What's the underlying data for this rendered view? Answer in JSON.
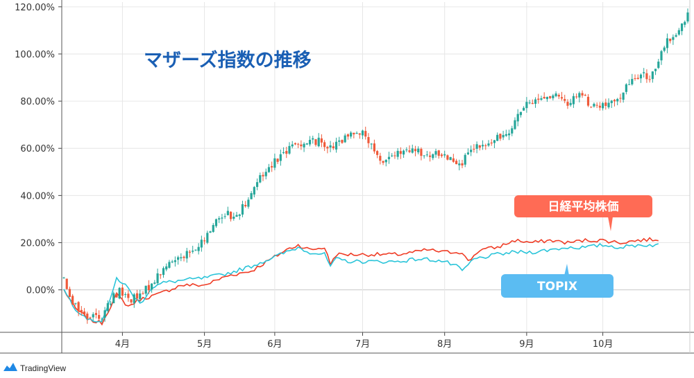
{
  "chart_data": {
    "type": "line",
    "title": "マザーズ指数の推移",
    "y_unit": "%",
    "ylim": [
      -18,
      122
    ],
    "y_ticks": [
      "0.00%",
      "20.00%",
      "40.00%",
      "60.00%",
      "80.00%",
      "100.00%",
      "120.00%"
    ],
    "y_tick_values": [
      0,
      20,
      40,
      60,
      80,
      100,
      120
    ],
    "x_ticks": [
      "4月",
      "5月",
      "6月",
      "7月",
      "8月",
      "9月",
      "10月"
    ],
    "x_tick_index": [
      20,
      48,
      72,
      102,
      130,
      158,
      184
    ],
    "num_points": 204,
    "grid": true,
    "series": [
      {
        "name": "日経平均株価",
        "kind": "line",
        "color": "#ef3b24",
        "keypoints": [
          [
            0,
            0
          ],
          [
            4,
            -8
          ],
          [
            9,
            -13
          ],
          [
            13,
            -14
          ],
          [
            18,
            -2
          ],
          [
            22,
            -7
          ],
          [
            26,
            -4
          ],
          [
            32,
            -2
          ],
          [
            40,
            2
          ],
          [
            48,
            2
          ],
          [
            56,
            6
          ],
          [
            64,
            8
          ],
          [
            72,
            14
          ],
          [
            76,
            17
          ],
          [
            80,
            19
          ],
          [
            84,
            17
          ],
          [
            89,
            18
          ],
          [
            91,
            11
          ],
          [
            93,
            15
          ],
          [
            98,
            15
          ],
          [
            106,
            15
          ],
          [
            114,
            15
          ],
          [
            120,
            16
          ],
          [
            124,
            17
          ],
          [
            130,
            16
          ],
          [
            136,
            16
          ],
          [
            138,
            12
          ],
          [
            142,
            17
          ],
          [
            148,
            18
          ],
          [
            154,
            21
          ],
          [
            160,
            20
          ],
          [
            166,
            21
          ],
          [
            172,
            20
          ],
          [
            178,
            21
          ],
          [
            184,
            21
          ],
          [
            190,
            20
          ],
          [
            196,
            21
          ],
          [
            203,
            21.5
          ]
        ]
      },
      {
        "name": "TOPIX",
        "kind": "line",
        "color": "#29c4d9",
        "keypoints": [
          [
            0,
            0
          ],
          [
            4,
            -8
          ],
          [
            9,
            -13
          ],
          [
            13,
            -13
          ],
          [
            16,
            -4
          ],
          [
            18,
            5
          ],
          [
            21,
            2
          ],
          [
            26,
            -6
          ],
          [
            30,
            1
          ],
          [
            34,
            3
          ],
          [
            40,
            4
          ],
          [
            48,
            5
          ],
          [
            56,
            7
          ],
          [
            64,
            10
          ],
          [
            72,
            14
          ],
          [
            76,
            16
          ],
          [
            80,
            18
          ],
          [
            84,
            16
          ],
          [
            89,
            15
          ],
          [
            91,
            10
          ],
          [
            93,
            13
          ],
          [
            98,
            12
          ],
          [
            106,
            12
          ],
          [
            114,
            12
          ],
          [
            120,
            13
          ],
          [
            124,
            13
          ],
          [
            130,
            12
          ],
          [
            134,
            10
          ],
          [
            136,
            8
          ],
          [
            140,
            13
          ],
          [
            148,
            15
          ],
          [
            154,
            16
          ],
          [
            160,
            16
          ],
          [
            166,
            17
          ],
          [
            172,
            18
          ],
          [
            178,
            18
          ],
          [
            184,
            19
          ],
          [
            190,
            18
          ],
          [
            196,
            19
          ],
          [
            203,
            19
          ]
        ]
      },
      {
        "name": "マザーズ指数",
        "kind": "candlestick",
        "up_color": "#26a69a",
        "down_color": "#ef5a3a",
        "keypoints": [
          [
            0,
            5
          ],
          [
            3,
            -5
          ],
          [
            7,
            -11
          ],
          [
            10,
            -11
          ],
          [
            13,
            -11
          ],
          [
            17,
            -3
          ],
          [
            19,
            0
          ],
          [
            22,
            -4
          ],
          [
            26,
            -3
          ],
          [
            30,
            3
          ],
          [
            35,
            10
          ],
          [
            40,
            15
          ],
          [
            44,
            16
          ],
          [
            48,
            21
          ],
          [
            52,
            30
          ],
          [
            56,
            33
          ],
          [
            58,
            30
          ],
          [
            62,
            37
          ],
          [
            66,
            46
          ],
          [
            70,
            52
          ],
          [
            72,
            55
          ],
          [
            76,
            59
          ],
          [
            80,
            62
          ],
          [
            84,
            63
          ],
          [
            88,
            63
          ],
          [
            91,
            60
          ],
          [
            96,
            64
          ],
          [
            100,
            68
          ],
          [
            103,
            65
          ],
          [
            106,
            58
          ],
          [
            108,
            54
          ],
          [
            112,
            57
          ],
          [
            116,
            58
          ],
          [
            120,
            59
          ],
          [
            124,
            56
          ],
          [
            128,
            58
          ],
          [
            132,
            56
          ],
          [
            136,
            54
          ],
          [
            140,
            60
          ],
          [
            144,
            61
          ],
          [
            148,
            64
          ],
          [
            152,
            68
          ],
          [
            156,
            76
          ],
          [
            160,
            80
          ],
          [
            164,
            82
          ],
          [
            168,
            82
          ],
          [
            170,
            80
          ],
          [
            172,
            79
          ],
          [
            176,
            84
          ],
          [
            180,
            78
          ],
          [
            184,
            78
          ],
          [
            188,
            79
          ],
          [
            192,
            86
          ],
          [
            196,
            91
          ],
          [
            200,
            90
          ],
          [
            203,
            97
          ],
          [
            206,
            105
          ],
          [
            210,
            110
          ],
          [
            213,
            116
          ]
        ]
      }
    ],
    "legend_callouts": [
      {
        "label": "日経平均株価",
        "color": "#ff6b55"
      },
      {
        "label": "TOPIX",
        "color": "#5bbcf2"
      }
    ]
  },
  "brand": {
    "label": "TradingView"
  }
}
